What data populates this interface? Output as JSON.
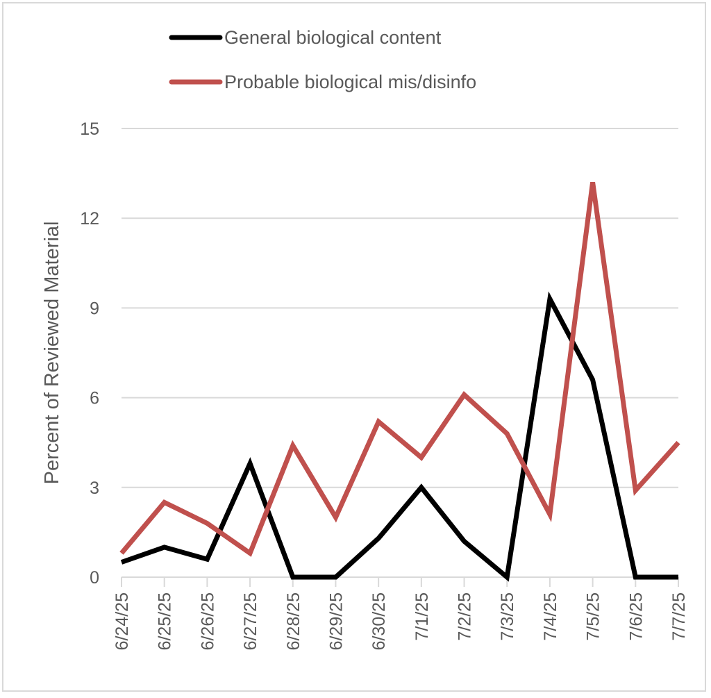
{
  "chart_data": {
    "type": "line",
    "title": "",
    "xlabel": "",
    "ylabel": "Percent of Reviewed Material",
    "ylim": [
      0,
      15
    ],
    "yticks": [
      "0",
      "3",
      "6",
      "9",
      "12",
      "15"
    ],
    "grid": true,
    "legend_position": "top",
    "categories": [
      "6/24/25",
      "6/25/25",
      "6/26/25",
      "6/27/25",
      "6/28/25",
      "6/29/25",
      "6/30/25",
      "7/1/25",
      "7/2/25",
      "7/3/25",
      "7/4/25",
      "7/5/25",
      "7/6/25",
      "7/7/25"
    ],
    "series": [
      {
        "name": "General biological content",
        "color": "#000000",
        "values": [
          0.5,
          1.0,
          0.6,
          3.8,
          0,
          0,
          1.3,
          3.0,
          1.2,
          0,
          9.3,
          6.6,
          0,
          0
        ]
      },
      {
        "name": "Probable biological mis/disinfo",
        "color": "#c0504d",
        "values": [
          0.8,
          2.5,
          1.8,
          0.8,
          4.4,
          2.0,
          5.2,
          4.0,
          6.1,
          4.8,
          2.1,
          13.2,
          2.9,
          4.5
        ]
      }
    ]
  },
  "colors": {
    "grid": "#d9d9d9",
    "text": "#595959",
    "border": "#d9d9d9"
  }
}
